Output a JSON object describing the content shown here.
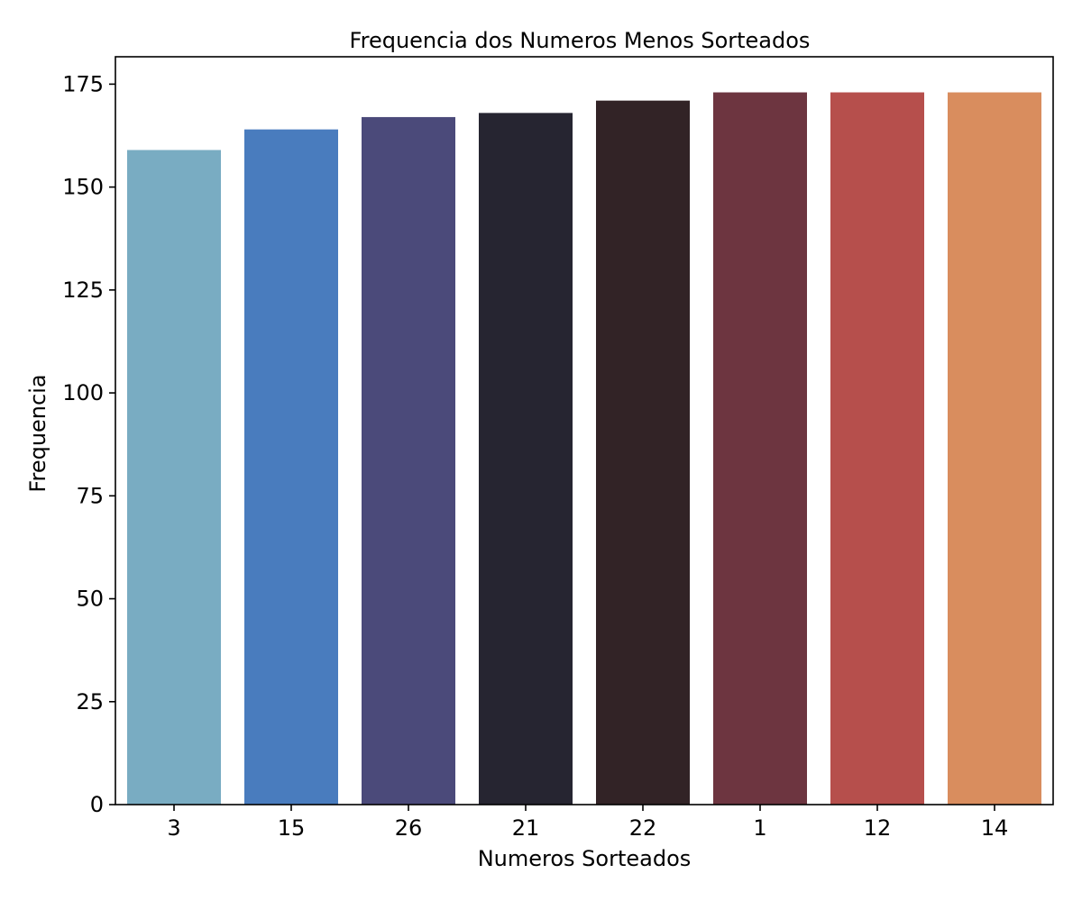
{
  "chart_data": {
    "type": "bar",
    "title": "Frequencia dos Numeros Menos Sorteados",
    "xlabel": "Numeros Sorteados",
    "ylabel": "Frequencia",
    "categories": [
      "3",
      "15",
      "26",
      "21",
      "22",
      "1",
      "12",
      "14"
    ],
    "values": [
      159,
      164,
      167,
      168,
      171,
      173,
      173,
      173
    ],
    "colors": [
      "#79acc2",
      "#497cbe",
      "#4b4a7a",
      "#262531",
      "#322326",
      "#6d3540",
      "#b64f4c",
      "#d98d5e"
    ],
    "ylim": [
      0,
      181.65
    ],
    "yticks": [
      0,
      25,
      50,
      75,
      100,
      125,
      150,
      175
    ],
    "grid": false,
    "legend": false
  }
}
